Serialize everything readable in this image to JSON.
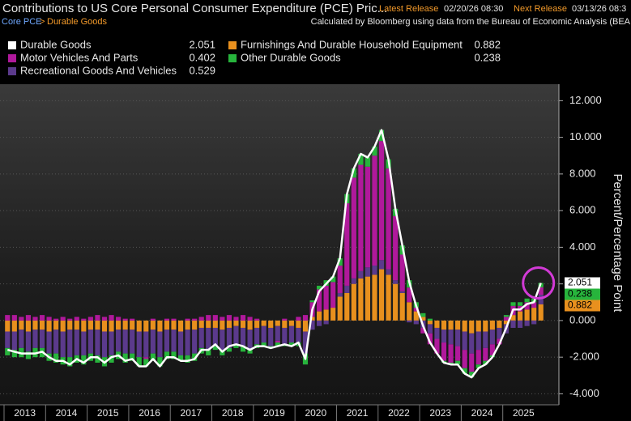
{
  "chart_data": {
    "type": "bar",
    "title": "Contributions to US Core Personal Consumer Expenditure (PCE) Pric...",
    "header": {
      "latest_label": "Latest Release",
      "latest_value": "02/20/26 08:30",
      "next_label": "Next Release",
      "next_value": "03/13/26 08:3",
      "breadcrumb_root": "Core PCE",
      "breadcrumb_sep": ">",
      "breadcrumb_leaf": "Durable Goods",
      "source": "Calculated by Bloomberg using data from the Bureau of Economic Analysis (BEA"
    },
    "y_axis_label": "Percent/Percentage Point",
    "categories": [
      null,
      null,
      null,
      "2013",
      null,
      null,
      null,
      null,
      null,
      "2014",
      null,
      null,
      null,
      null,
      null,
      "2015",
      null,
      null,
      null,
      null,
      null,
      "2016",
      null,
      null,
      null,
      null,
      null,
      "2017",
      null,
      null,
      null,
      null,
      null,
      "2018",
      null,
      null,
      null,
      null,
      null,
      "2019",
      null,
      null,
      null,
      null,
      null,
      "2020",
      null,
      null,
      null,
      null,
      null,
      "2021",
      null,
      null,
      null,
      null,
      null,
      "2022",
      null,
      null,
      null,
      null,
      null,
      "2023",
      null,
      null,
      null,
      null,
      null,
      "2024",
      null,
      null,
      null,
      null,
      null,
      "2025",
      null,
      null
    ],
    "series": [
      {
        "name": "Durable Goods",
        "kind": "line",
        "color": "#ffffff",
        "values": [
          -1.6,
          -1.7,
          -1.8,
          -1.8,
          -1.8,
          -1.7,
          -2.0,
          -2.2,
          -2.2,
          -2.4,
          -2.1,
          -2.3,
          -2.0,
          -2.0,
          -2.3,
          -2.0,
          -1.9,
          -2.2,
          -2.1,
          -2.5,
          -2.5,
          -2.1,
          -2.5,
          -2.0,
          -2.0,
          -2.2,
          -2.2,
          -2.1,
          -1.6,
          -1.6,
          -1.3,
          -1.7,
          -1.4,
          -1.3,
          -1.4,
          -1.6,
          -1.4,
          -1.4,
          -1.5,
          -1.4,
          -1.3,
          -1.4,
          -1.2,
          -2.1,
          0.6,
          1.6,
          2.0,
          2.4,
          3.4,
          6.9,
          8.3,
          9.1,
          8.9,
          9.5,
          10.4,
          8.8,
          6.1,
          4.1,
          2.1,
          0.8,
          -0.3,
          -1.2,
          -1.8,
          -2.3,
          -2.4,
          -2.4,
          -2.9,
          -3.1,
          -2.6,
          -2.4,
          -2.0,
          -1.3,
          -0.4,
          0.6,
          0.6,
          0.9,
          1.0,
          2.051
        ]
      },
      {
        "name": "Motor Vehicles And Parts",
        "kind": "bar",
        "color": "#b0199b",
        "values": [
          0.3,
          0.3,
          0.2,
          0.3,
          0.2,
          0.3,
          0.2,
          0.1,
          0.2,
          0.1,
          0.2,
          0.1,
          0.2,
          0.3,
          0.2,
          0.3,
          0.2,
          0.1,
          0.1,
          0,
          -0.1,
          0.1,
          0,
          0.1,
          0.1,
          0,
          0.1,
          0.1,
          0.2,
          0.3,
          0.3,
          0.2,
          0.3,
          0.2,
          0.3,
          0.2,
          0.1,
          0,
          0,
          -0.1,
          0.1,
          0,
          0.2,
          0.3,
          0.8,
          1.2,
          1.3,
          1.4,
          1.5,
          4.5,
          5.5,
          5.8,
          5.5,
          6.0,
          6.5,
          5.5,
          3.5,
          2.0,
          0.8,
          0.2,
          -0.3,
          -0.6,
          -0.8,
          -1.0,
          -1.0,
          -0.8,
          -1.0,
          -1.0,
          -0.8,
          -0.7,
          -0.6,
          -0.3,
          0.2,
          0.5,
          0.3,
          0.4,
          0.3,
          0.402
        ]
      },
      {
        "name": "Recreational Goods And Vehicles",
        "kind": "bar",
        "color": "#5b3a8c",
        "values": [
          -0.9,
          -1.0,
          -1.0,
          -1.1,
          -1.0,
          -1.0,
          -1.2,
          -1.3,
          -1.4,
          -1.5,
          -1.4,
          -1.3,
          -1.3,
          -1.4,
          -1.4,
          -1.3,
          -1.2,
          -1.3,
          -1.3,
          -1.4,
          -1.4,
          -1.3,
          -1.4,
          -1.2,
          -1.2,
          -1.3,
          -1.4,
          -1.3,
          -1.1,
          -1.2,
          -1.0,
          -1.1,
          -1.1,
          -1.0,
          -1.0,
          -1.1,
          -0.9,
          -0.9,
          -1.0,
          -0.8,
          -0.9,
          -0.9,
          -0.8,
          -1.2,
          -0.5,
          -0.3,
          -0.2,
          0.0,
          0.2,
          0.4,
          0.3,
          0.4,
          0.5,
          0.5,
          0.5,
          0.3,
          0.2,
          0.1,
          -0.1,
          -0.2,
          -0.4,
          -0.5,
          -0.6,
          -0.7,
          -0.8,
          -0.9,
          -1.0,
          -1.1,
          -1.0,
          -0.9,
          -0.8,
          -0.6,
          -0.5,
          -0.4,
          -0.4,
          -0.3,
          -0.2,
          0.529
        ]
      },
      {
        "name": "Furnishings And Durable Household Equipment",
        "kind": "bar",
        "color": "#e8901e",
        "values": [
          -0.6,
          -0.6,
          -0.5,
          -0.6,
          -0.5,
          -0.5,
          -0.6,
          -0.5,
          -0.6,
          -0.5,
          -0.5,
          -0.6,
          -0.5,
          -0.5,
          -0.6,
          -0.6,
          -0.5,
          -0.5,
          -0.5,
          -0.6,
          -0.6,
          -0.5,
          -0.6,
          -0.5,
          -0.5,
          -0.6,
          -0.5,
          -0.5,
          -0.4,
          -0.4,
          -0.4,
          -0.5,
          -0.4,
          -0.3,
          -0.4,
          -0.5,
          -0.4,
          -0.3,
          -0.4,
          -0.3,
          -0.4,
          -0.3,
          -0.4,
          -0.6,
          0.2,
          0.5,
          0.6,
          0.7,
          1.3,
          1.5,
          2.0,
          2.3,
          2.4,
          2.5,
          2.8,
          2.5,
          2.0,
          1.5,
          1.0,
          0.5,
          0.2,
          -0.2,
          -0.4,
          -0.5,
          -0.5,
          -0.5,
          -0.6,
          -0.7,
          -0.6,
          -0.6,
          -0.5,
          -0.4,
          -0.2,
          0.3,
          0.5,
          0.6,
          0.7,
          0.882
        ]
      },
      {
        "name": "Other Durable Goods",
        "kind": "bar",
        "color": "#27b43c",
        "values": [
          -0.4,
          -0.4,
          -0.5,
          -0.4,
          -0.5,
          -0.5,
          -0.4,
          -0.5,
          -0.4,
          -0.5,
          -0.4,
          -0.5,
          -0.4,
          -0.4,
          -0.5,
          -0.4,
          -0.4,
          -0.5,
          -0.4,
          -0.5,
          -0.4,
          -0.4,
          -0.5,
          -0.4,
          -0.4,
          -0.3,
          -0.4,
          -0.4,
          -0.3,
          -0.3,
          -0.2,
          -0.3,
          -0.2,
          -0.2,
          -0.3,
          -0.2,
          -0.2,
          -0.2,
          -0.1,
          -0.2,
          -0.1,
          -0.2,
          -0.2,
          -0.6,
          0.1,
          0.2,
          0.3,
          0.3,
          0.4,
          0.5,
          0.5,
          0.6,
          0.5,
          0.5,
          0.6,
          0.5,
          0.4,
          0.5,
          0.4,
          0.3,
          0.2,
          0.1,
          0.0,
          -0.1,
          -0.1,
          -0.2,
          -0.3,
          -0.3,
          -0.2,
          -0.2,
          -0.1,
          0.0,
          0.1,
          0.2,
          0.2,
          0.2,
          0.2,
          0.238
        ]
      }
    ],
    "stack_order": [
      3,
      2,
      1,
      4
    ],
    "ylim": [
      -4.6,
      12.9
    ],
    "yticks": [
      {
        "value": 12,
        "label": "12.000"
      },
      {
        "value": 10,
        "label": "10.000"
      },
      {
        "value": 8,
        "label": "8.000"
      },
      {
        "value": 6,
        "label": "6.000"
      },
      {
        "value": 4,
        "label": "4.000"
      },
      {
        "value": 2,
        "label": "2.000"
      },
      {
        "value": 0,
        "label": "0.000"
      },
      {
        "value": -2,
        "label": "-2.000"
      },
      {
        "value": -4,
        "label": "-4.000"
      }
    ],
    "grid": true
  }
}
